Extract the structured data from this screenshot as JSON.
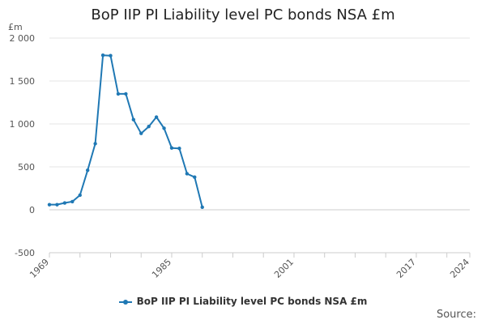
{
  "chart_data": {
    "type": "line",
    "title": "BoP IIP PI Liability level PC bonds NSA £m",
    "ylabel": "£m",
    "xlabel": "",
    "xlim": [
      1969,
      2024
    ],
    "ylim": [
      -500,
      2000
    ],
    "yticks": [
      -500,
      0,
      500,
      1000,
      1500,
      2000
    ],
    "ytick_labels": [
      "-500",
      "0",
      "500",
      "1 000",
      "1 500",
      "2 000"
    ],
    "xticks": [
      1969,
      1973,
      1977,
      1981,
      1985,
      1989,
      1993,
      1997,
      2001,
      2005,
      2009,
      2013,
      2017,
      2021,
      2024
    ],
    "xtick_labels": [
      {
        "year": 1969,
        "label": "1969"
      },
      {
        "year": 1985,
        "label": "1985"
      },
      {
        "year": 2001,
        "label": "2001"
      },
      {
        "year": 2017,
        "label": "2017"
      },
      {
        "year": 2024,
        "label": "2024"
      }
    ],
    "grid": "horizontal",
    "legend": "bottom",
    "series": [
      {
        "name": "BoP IIP PI Liability level PC bonds NSA £m",
        "color": "#1f78b4",
        "x": [
          1969,
          1970,
          1971,
          1972,
          1973,
          1974,
          1975,
          1976,
          1977,
          1978,
          1979,
          1980,
          1981,
          1982,
          1983,
          1984,
          1985,
          1986,
          1987,
          1988,
          1989
        ],
        "values": [
          60,
          60,
          80,
          95,
          170,
          460,
          770,
          1800,
          1795,
          1350,
          1350,
          1050,
          890,
          970,
          1080,
          950,
          720,
          715,
          420,
          380,
          30
        ]
      }
    ]
  },
  "source_label": "Source:"
}
